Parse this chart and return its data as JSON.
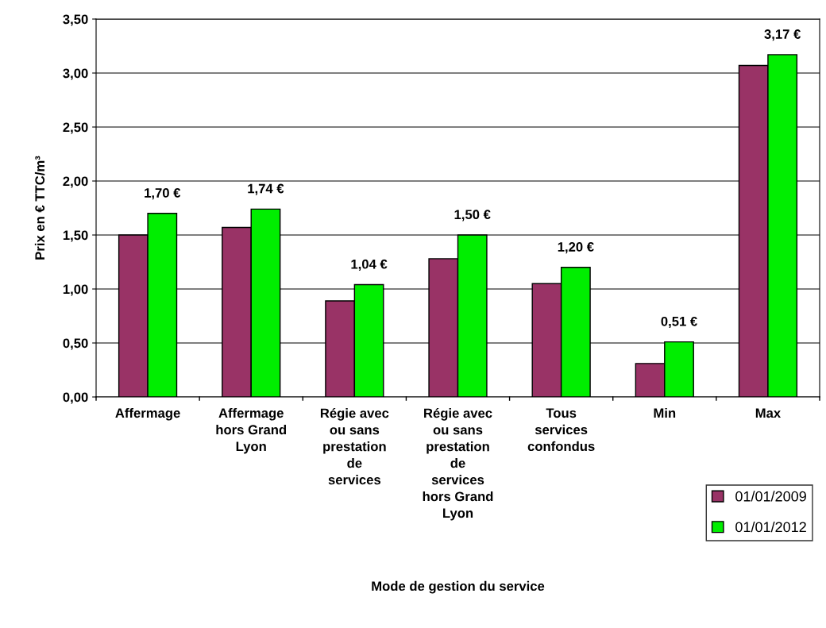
{
  "chart_data": {
    "type": "bar",
    "xlabel": "Mode de gestion du service",
    "ylabel": "Prix en € TTC/m³",
    "categories": [
      "Affermage",
      "Affermage\nhors Grand\nLyon",
      "Régie avec\nou sans\nprestation\nde\nservices",
      "Régie avec\nou sans\nprestation\nde\nservices\nhors Grand\nLyon",
      "Tous\nservices\nconfondus",
      "Min",
      "Max"
    ],
    "series": [
      {
        "name": "01/01/2009",
        "color": "#993366",
        "values": [
          1.5,
          1.57,
          0.89,
          1.28,
          1.05,
          0.31,
          3.07
        ]
      },
      {
        "name": "01/01/2012",
        "color": "#00ee00",
        "values": [
          1.7,
          1.74,
          1.04,
          1.5,
          1.2,
          0.51,
          3.17
        ],
        "value_labels": [
          "1,70 €",
          "1,74 €",
          "1,04 €",
          "1,50 €",
          "1,20 €",
          "0,51 €",
          "3,17 €"
        ]
      }
    ],
    "ylim": [
      0,
      3.5
    ],
    "yticks": [
      {
        "value": 0,
        "label": "0,00"
      },
      {
        "value": 0.5,
        "label": "0,50"
      },
      {
        "value": 1.0,
        "label": "1,00"
      },
      {
        "value": 1.5,
        "label": "1,50"
      },
      {
        "value": 2.0,
        "label": "2,00"
      },
      {
        "value": 2.5,
        "label": "2,50"
      },
      {
        "value": 3.0,
        "label": "3,00"
      },
      {
        "value": 3.5,
        "label": "3,50"
      }
    ],
    "grid": "y",
    "legend": "bottom right"
  }
}
